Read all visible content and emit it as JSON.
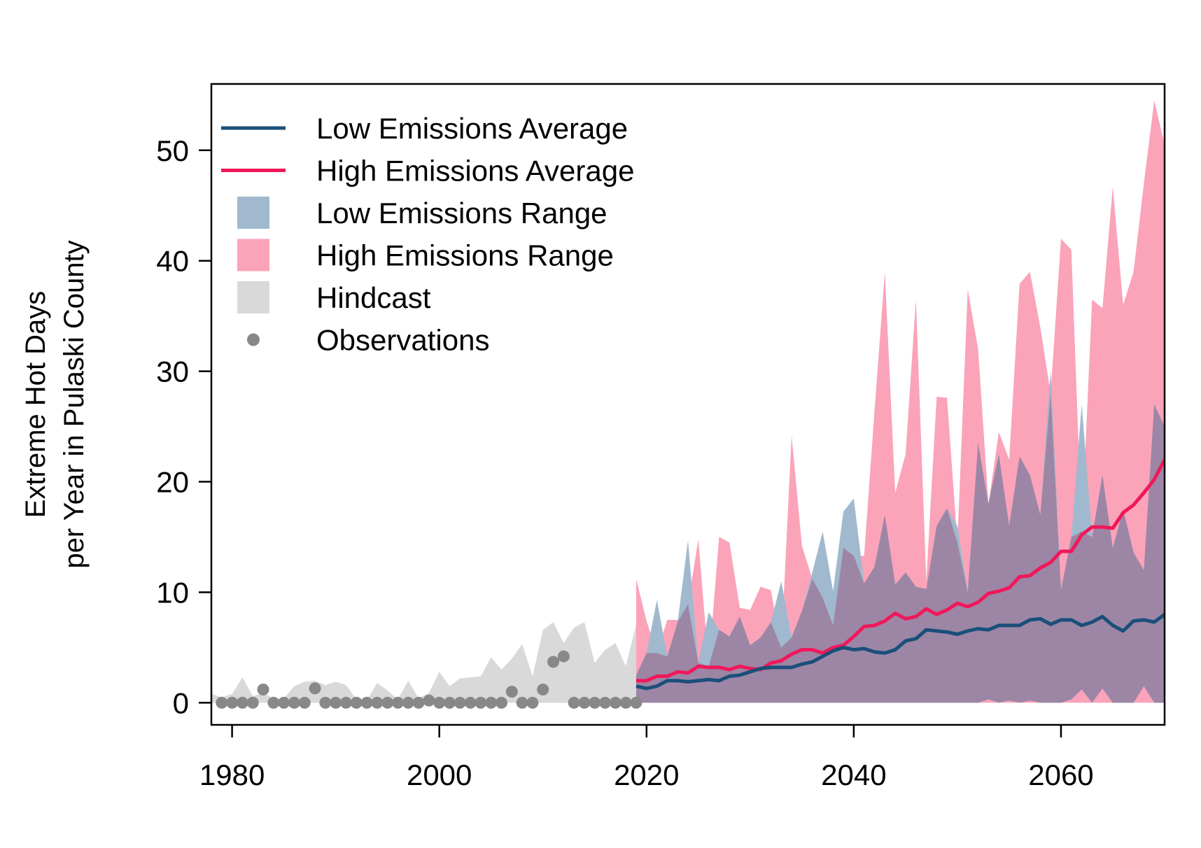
{
  "chart_data": {
    "type": "area",
    "ylabel": [
      "Extreme Hot Days",
      "per Year in Pulaski County"
    ],
    "xlabel": "",
    "xlim": [
      1978,
      2070
    ],
    "ylim": [
      -2,
      56
    ],
    "x_ticks": [
      1980,
      2000,
      2020,
      2040,
      2060
    ],
    "y_ticks": [
      0,
      10,
      20,
      30,
      40,
      50
    ],
    "grid": false,
    "legend_position": "top-left",
    "legend": [
      {
        "label": "Low Emissions Average",
        "kind": "line",
        "color": "#1a4f7a"
      },
      {
        "label": "High Emissions Average",
        "kind": "line",
        "color": "#f0185a"
      },
      {
        "label": "Low Emissions Range",
        "kind": "fill",
        "color": "#a0b9cf"
      },
      {
        "label": "High Emissions Range",
        "kind": "fill",
        "color": "#fba3b9"
      },
      {
        "label": "Hindcast",
        "kind": "fill",
        "color": "#d9d9d9"
      },
      {
        "label": "Observations",
        "kind": "point",
        "color": "#888888"
      }
    ],
    "colors": {
      "low_avg": "#1a4f7a",
      "high_avg": "#f0185a",
      "low_range": "#a0b9cf",
      "high_range": "#fba3b9",
      "overlap": "#9d86a5",
      "hindcast": "#d9d9d9",
      "observations": "#888888"
    },
    "hindcast": {
      "x": [
        1978,
        1979,
        1980,
        1981,
        1982,
        1983,
        1984,
        1985,
        1986,
        1987,
        1988,
        1989,
        1990,
        1991,
        1992,
        1993,
        1994,
        1995,
        1996,
        1997,
        1998,
        1999,
        2000,
        2001,
        2002,
        2003,
        2004,
        2005,
        2006,
        2007,
        2008,
        2009,
        2010,
        2011,
        2012,
        2013,
        2014,
        2015,
        2016,
        2017,
        2018,
        2019
      ],
      "upper": [
        0.8,
        0.5,
        0.8,
        2.3,
        0.6,
        0.9,
        0.4,
        0.4,
        1.5,
        1.9,
        2.0,
        1.6,
        1.9,
        1.6,
        0.3,
        0.2,
        1.8,
        1.1,
        0.3,
        2.0,
        0.4,
        0.9,
        2.8,
        1.5,
        2.2,
        2.3,
        2.4,
        4.1,
        3.0,
        4.0,
        5.3,
        2.4,
        6.6,
        7.3,
        5.4,
        6.8,
        7.3,
        3.6,
        4.8,
        5.4,
        3.3,
        7.1
      ]
    },
    "observations": {
      "x": [
        1979,
        1980,
        1981,
        1982,
        1983,
        1984,
        1985,
        1986,
        1987,
        1988,
        1989,
        1990,
        1991,
        1992,
        1993,
        1994,
        1995,
        1996,
        1997,
        1998,
        1999,
        2000,
        2001,
        2002,
        2003,
        2004,
        2005,
        2006,
        2007,
        2008,
        2009,
        2010,
        2011,
        2012,
        2013,
        2014,
        2015,
        2016,
        2017,
        2018,
        2019
      ],
      "y": [
        0,
        0,
        0,
        0,
        1.2,
        0,
        0,
        0,
        0,
        1.3,
        0,
        0,
        0,
        0,
        0,
        0,
        0,
        0,
        0,
        0,
        0.2,
        0,
        0,
        0,
        0,
        0,
        0,
        0,
        1.0,
        0,
        0,
        1.2,
        3.7,
        4.2,
        0,
        0,
        0,
        0,
        0,
        0,
        0
      ]
    },
    "projection_x": [
      2019,
      2020,
      2021,
      2022,
      2023,
      2024,
      2025,
      2026,
      2027,
      2028,
      2029,
      2030,
      2031,
      2032,
      2033,
      2034,
      2035,
      2036,
      2037,
      2038,
      2039,
      2040,
      2041,
      2042,
      2043,
      2044,
      2045,
      2046,
      2047,
      2048,
      2049,
      2050,
      2051,
      2052,
      2053,
      2054,
      2055,
      2056,
      2057,
      2058,
      2059,
      2060,
      2061,
      2062,
      2063,
      2064,
      2065,
      2066,
      2067,
      2068,
      2069,
      2070
    ],
    "series": [
      {
        "name": "Low Emissions Average",
        "values": [
          1.5,
          1.3,
          1.5,
          2.0,
          2.0,
          1.9,
          2.0,
          2.1,
          2.0,
          2.4,
          2.5,
          2.8,
          3.1,
          3.2,
          3.2,
          3.2,
          3.5,
          3.7,
          4.2,
          4.7,
          5.0,
          4.8,
          4.9,
          4.6,
          4.5,
          4.8,
          5.6,
          5.8,
          6.6,
          6.5,
          6.4,
          6.2,
          6.5,
          6.7,
          6.6,
          7.0,
          7.0,
          7.0,
          7.5,
          7.6,
          7.1,
          7.5,
          7.5,
          7.0,
          7.3,
          7.8,
          7.0,
          6.5,
          7.4,
          7.5,
          7.3,
          8.0
        ]
      },
      {
        "name": "High Emissions Average",
        "values": [
          2.0,
          2.0,
          2.4,
          2.4,
          2.8,
          2.7,
          3.3,
          3.2,
          3.2,
          3.0,
          3.3,
          3.1,
          3.0,
          3.6,
          3.8,
          4.4,
          4.8,
          4.8,
          4.5,
          5.0,
          5.2,
          6.0,
          6.9,
          7.0,
          7.4,
          8.1,
          7.6,
          7.8,
          8.5,
          8.0,
          8.4,
          9.0,
          8.7,
          9.1,
          9.9,
          10.1,
          10.4,
          11.4,
          11.5,
          12.2,
          12.7,
          13.7,
          13.7,
          15.2,
          15.9,
          15.9,
          15.8,
          17.2,
          17.9,
          19.0,
          20.2,
          22.0
        ]
      }
    ],
    "ranges": [
      {
        "name": "Low Emissions Range",
        "lower": [
          0,
          0,
          0,
          0,
          0,
          0,
          0,
          0,
          0,
          0,
          0,
          0,
          0,
          0,
          0,
          0,
          0,
          0,
          0,
          0,
          0,
          0,
          0,
          0,
          0,
          0,
          0,
          0,
          0,
          0,
          0,
          0,
          0,
          0,
          0.3,
          0,
          0.2,
          0,
          0.2,
          0,
          0,
          0,
          0.3,
          1.2,
          0,
          1.3,
          0,
          0,
          0,
          1.5,
          0,
          0
        ],
        "upper": [
          2.5,
          4.5,
          9.3,
          4.2,
          7.3,
          14.7,
          3.6,
          8.2,
          6.6,
          6.0,
          7.8,
          5.2,
          5.9,
          7.3,
          11.0,
          5.9,
          8.3,
          11.8,
          15.5,
          10.1,
          17.3,
          18.5,
          10.8,
          12.3,
          17.0,
          10.7,
          11.8,
          10.5,
          10.3,
          16.0,
          17.6,
          16.0,
          10.0,
          23.5,
          18.0,
          22.5,
          16.0,
          22.3,
          20.6,
          17.0,
          30.0,
          10.2,
          15.0,
          27.0,
          15.0,
          20.6,
          14.0,
          17.5,
          13.6,
          12.0,
          27.0,
          25.0
        ]
      },
      {
        "name": "High Emissions Range",
        "lower": [
          0,
          0,
          0,
          0,
          0,
          0,
          0,
          0,
          0,
          0,
          0,
          0,
          0,
          0,
          0,
          0,
          0,
          0,
          0,
          0,
          0,
          0,
          0,
          0,
          0,
          0,
          0,
          0,
          0,
          0,
          0,
          0,
          0,
          0,
          0,
          0,
          0,
          0,
          0,
          0,
          0,
          0,
          0,
          0,
          0,
          0,
          0,
          0,
          0,
          0,
          0,
          0
        ],
        "upper": [
          11.2,
          7.4,
          4.5,
          7.5,
          7.5,
          8.9,
          14.8,
          3.3,
          15.0,
          14.5,
          8.6,
          8.4,
          10.5,
          10.2,
          5.0,
          24.2,
          14.2,
          11.2,
          9.5,
          7.0,
          14.0,
          13.3,
          13.3,
          26.4,
          39.0,
          19.0,
          22.5,
          36.5,
          11.0,
          27.7,
          27.6,
          14.5,
          37.4,
          32.0,
          18.0,
          24.5,
          22.0,
          37.9,
          39.0,
          34.0,
          28.0,
          42.0,
          41.0,
          15.5,
          36.5,
          35.7,
          46.7,
          36.0,
          39.0,
          47.0,
          54.5,
          50.5
        ]
      }
    ]
  }
}
